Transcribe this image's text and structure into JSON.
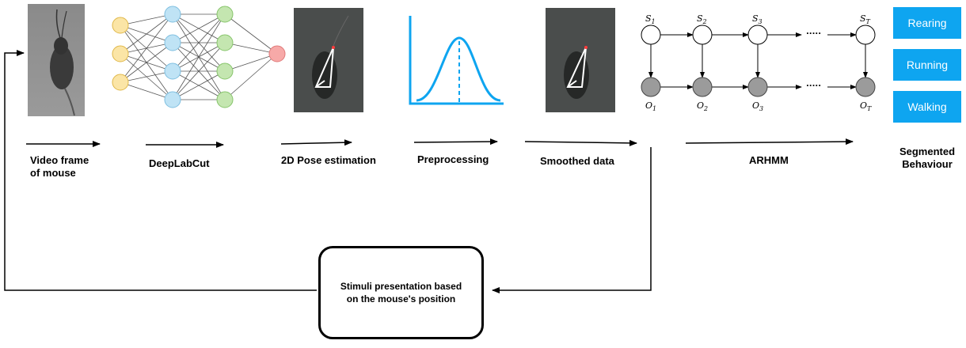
{
  "steps": {
    "video": "Video frame of mouse",
    "video_l1": "Video frame",
    "video_l2": "of mouse",
    "dlc": "DeepLabCut",
    "pose": "2D Pose estimation",
    "preproc": "Preprocessing",
    "smoothed": "Smoothed data",
    "arhmm": "ARHMM",
    "segmented_l1": "Segmented",
    "segmented_l2": "Behaviour"
  },
  "behaviours": [
    "Rearing",
    "Running",
    "Walking"
  ],
  "stimuli_l1": "Stimuli presentation based",
  "stimuli_l2": "on the mouse's position",
  "hmm": {
    "states": [
      "S",
      "S",
      "S",
      "S"
    ],
    "state_subs": [
      "1",
      "2",
      "3",
      "T"
    ],
    "obs": [
      "O",
      "O",
      "O",
      "O"
    ],
    "obs_subs": [
      "1",
      "2",
      "3",
      "T"
    ],
    "ellipsis": "....."
  },
  "colors": {
    "accent_blue": "#0ea5f0",
    "input_node": "#fbe5a6",
    "hidden1_node": "#bfe3f5",
    "hidden2_node": "#c4e6b0",
    "output_node": "#f7a9a8",
    "observed_node": "#9b9b9b"
  }
}
